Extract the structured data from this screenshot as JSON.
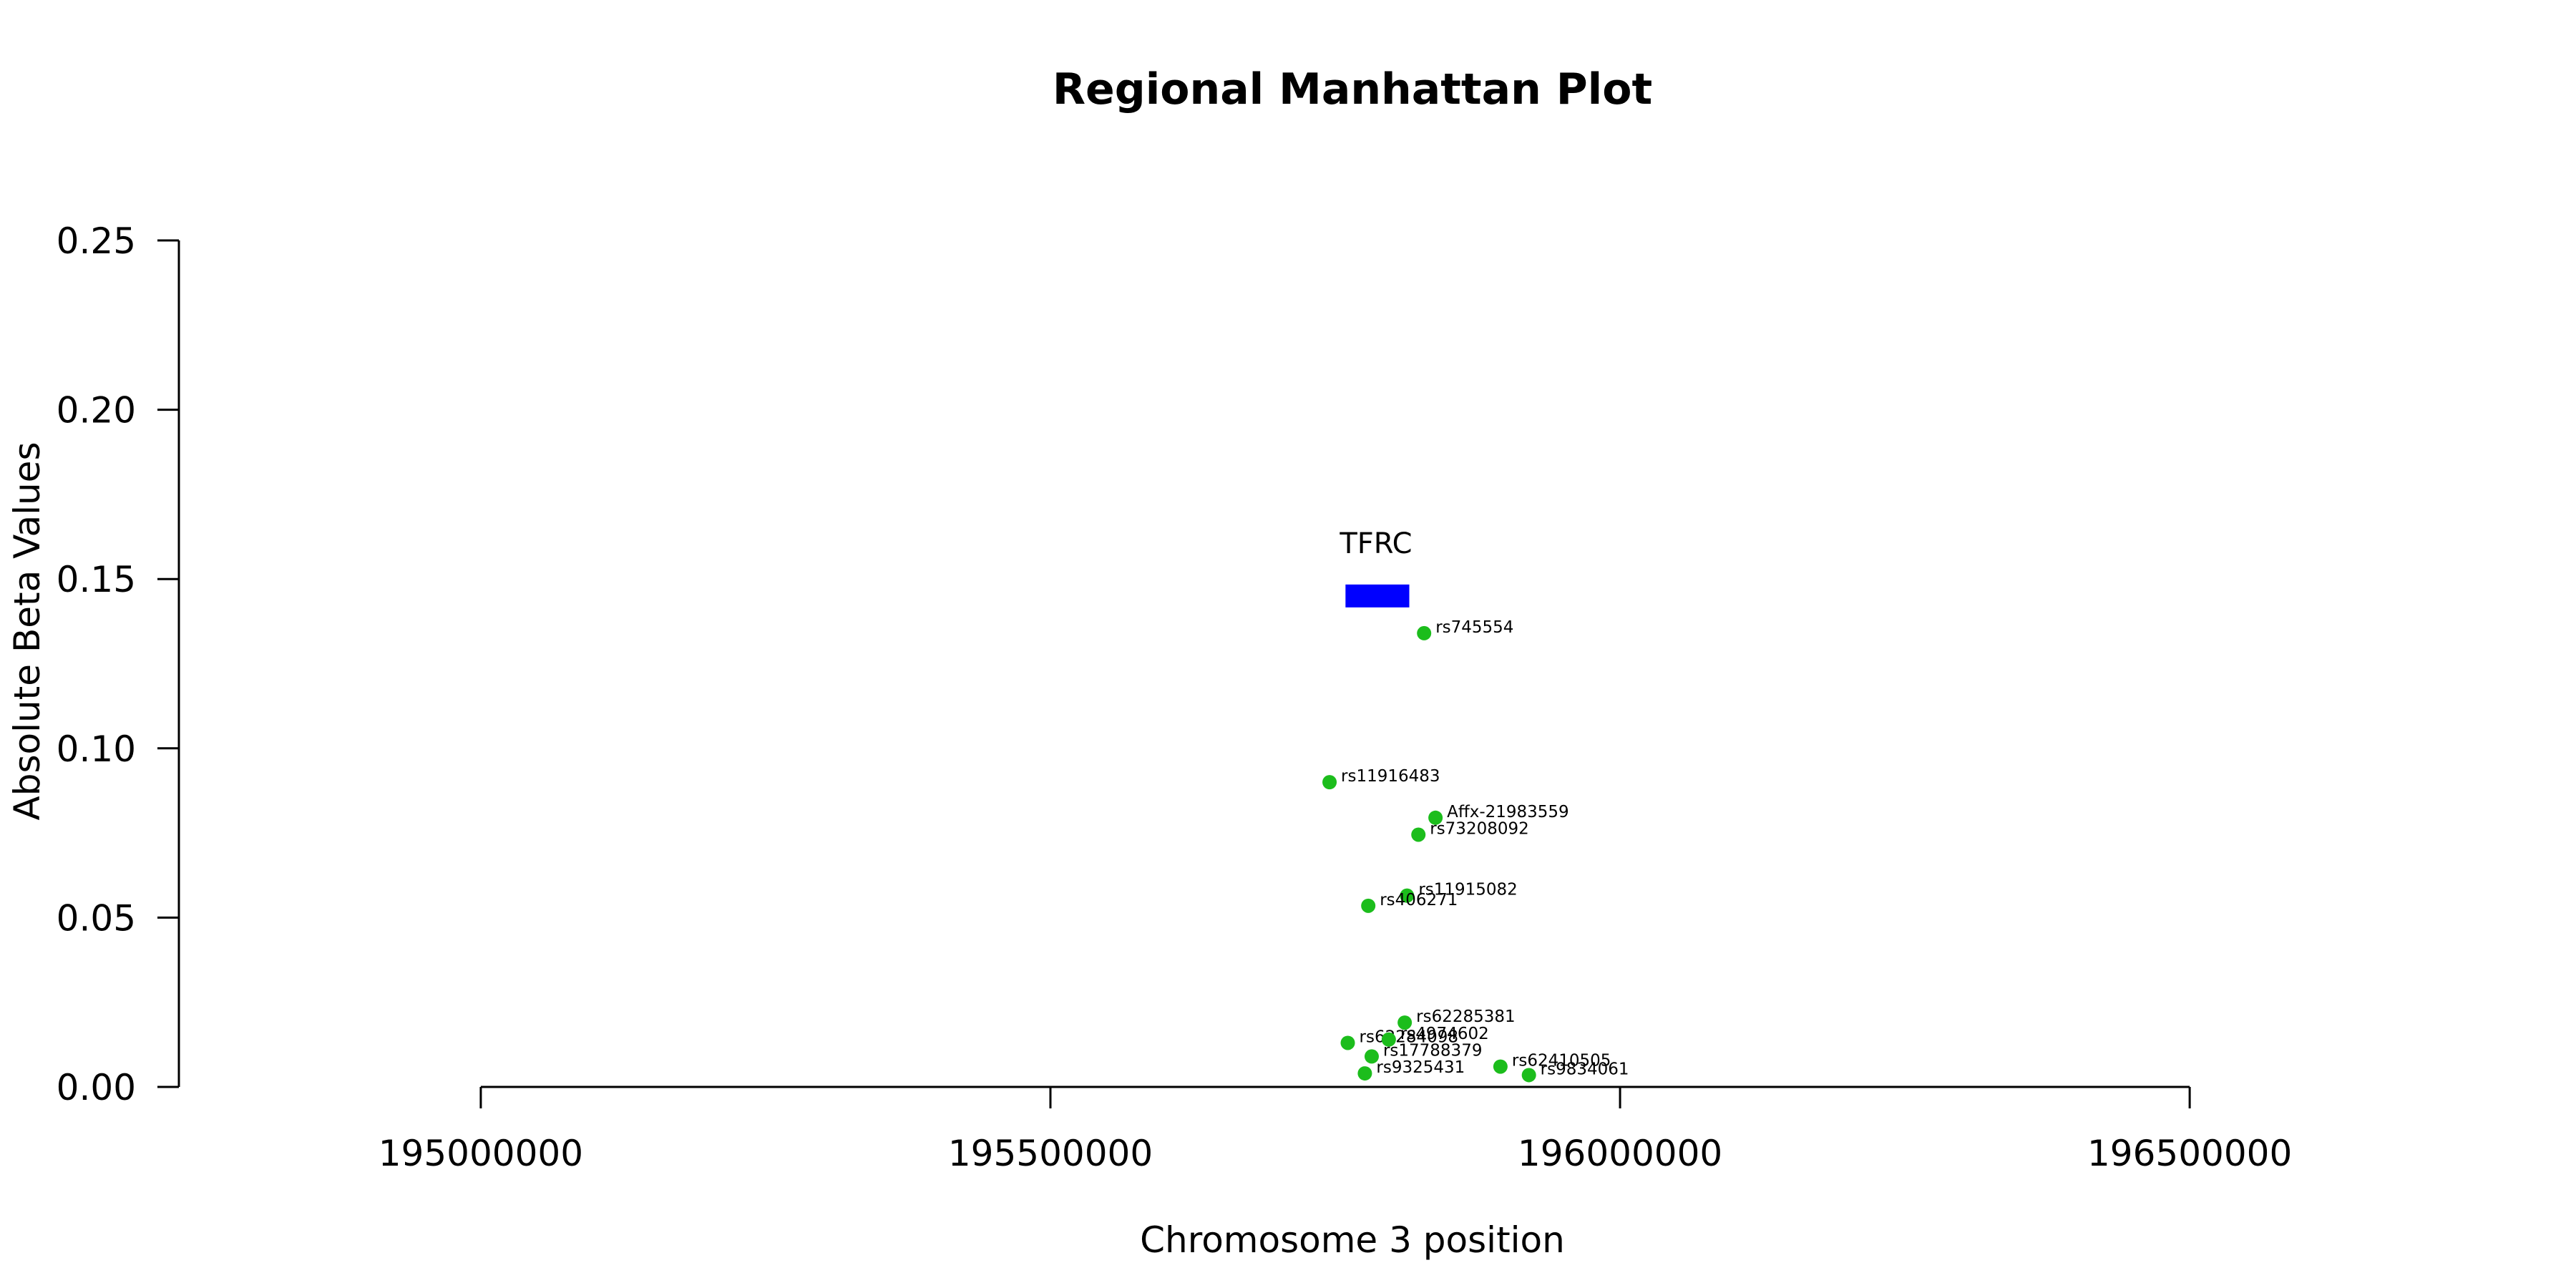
{
  "chart_data": {
    "type": "scatter",
    "title": "Regional Manhattan Plot",
    "xlabel": "Chromosome 3 position",
    "ylabel": "Absolute Beta Values",
    "xlim": [
      194735000,
      196770000
    ],
    "ylim": [
      0,
      0.25
    ],
    "xticks": [
      195000000,
      195500000,
      196000000,
      196500000
    ],
    "xtick_labels": [
      "195000000",
      "195500000",
      "196000000",
      "196500000"
    ],
    "yticks": [
      0,
      0.05,
      0.1,
      0.15,
      0.2,
      0.25
    ],
    "ytick_labels": [
      "0.00",
      "0.05",
      "0.10",
      "0.15",
      "0.20",
      "0.25"
    ],
    "grid": false,
    "point_color": "#1cbd1c",
    "gene": {
      "name": "TFRC",
      "start": 195759000,
      "end": 195815000,
      "y": 0.145,
      "color": "#0000ff"
    },
    "points": [
      {
        "label": "rs745554",
        "x": 195828000,
        "y": 0.134
      },
      {
        "label": "rs11916483",
        "x": 195745000,
        "y": 0.09
      },
      {
        "label": "Affx-21983559",
        "x": 195838000,
        "y": 0.0795
      },
      {
        "label": "rs73208092",
        "x": 195823000,
        "y": 0.0745
      },
      {
        "label": "rs11915082",
        "x": 195813000,
        "y": 0.0565
      },
      {
        "label": "rs406271",
        "x": 195779000,
        "y": 0.0535
      },
      {
        "label": "rs62285381",
        "x": 195811000,
        "y": 0.019
      },
      {
        "label": "rs62284098",
        "x": 195761000,
        "y": 0.013
      },
      {
        "label": "rs4974602",
        "x": 195797000,
        "y": 0.014
      },
      {
        "label": "rs17788379",
        "x": 195782000,
        "y": 0.009
      },
      {
        "label": "rs9325431",
        "x": 195776000,
        "y": 0.004
      },
      {
        "label": "rs62410505",
        "x": 195895000,
        "y": 0.006
      },
      {
        "label": "rs9834061",
        "x": 195920000,
        "y": 0.0035
      }
    ]
  }
}
